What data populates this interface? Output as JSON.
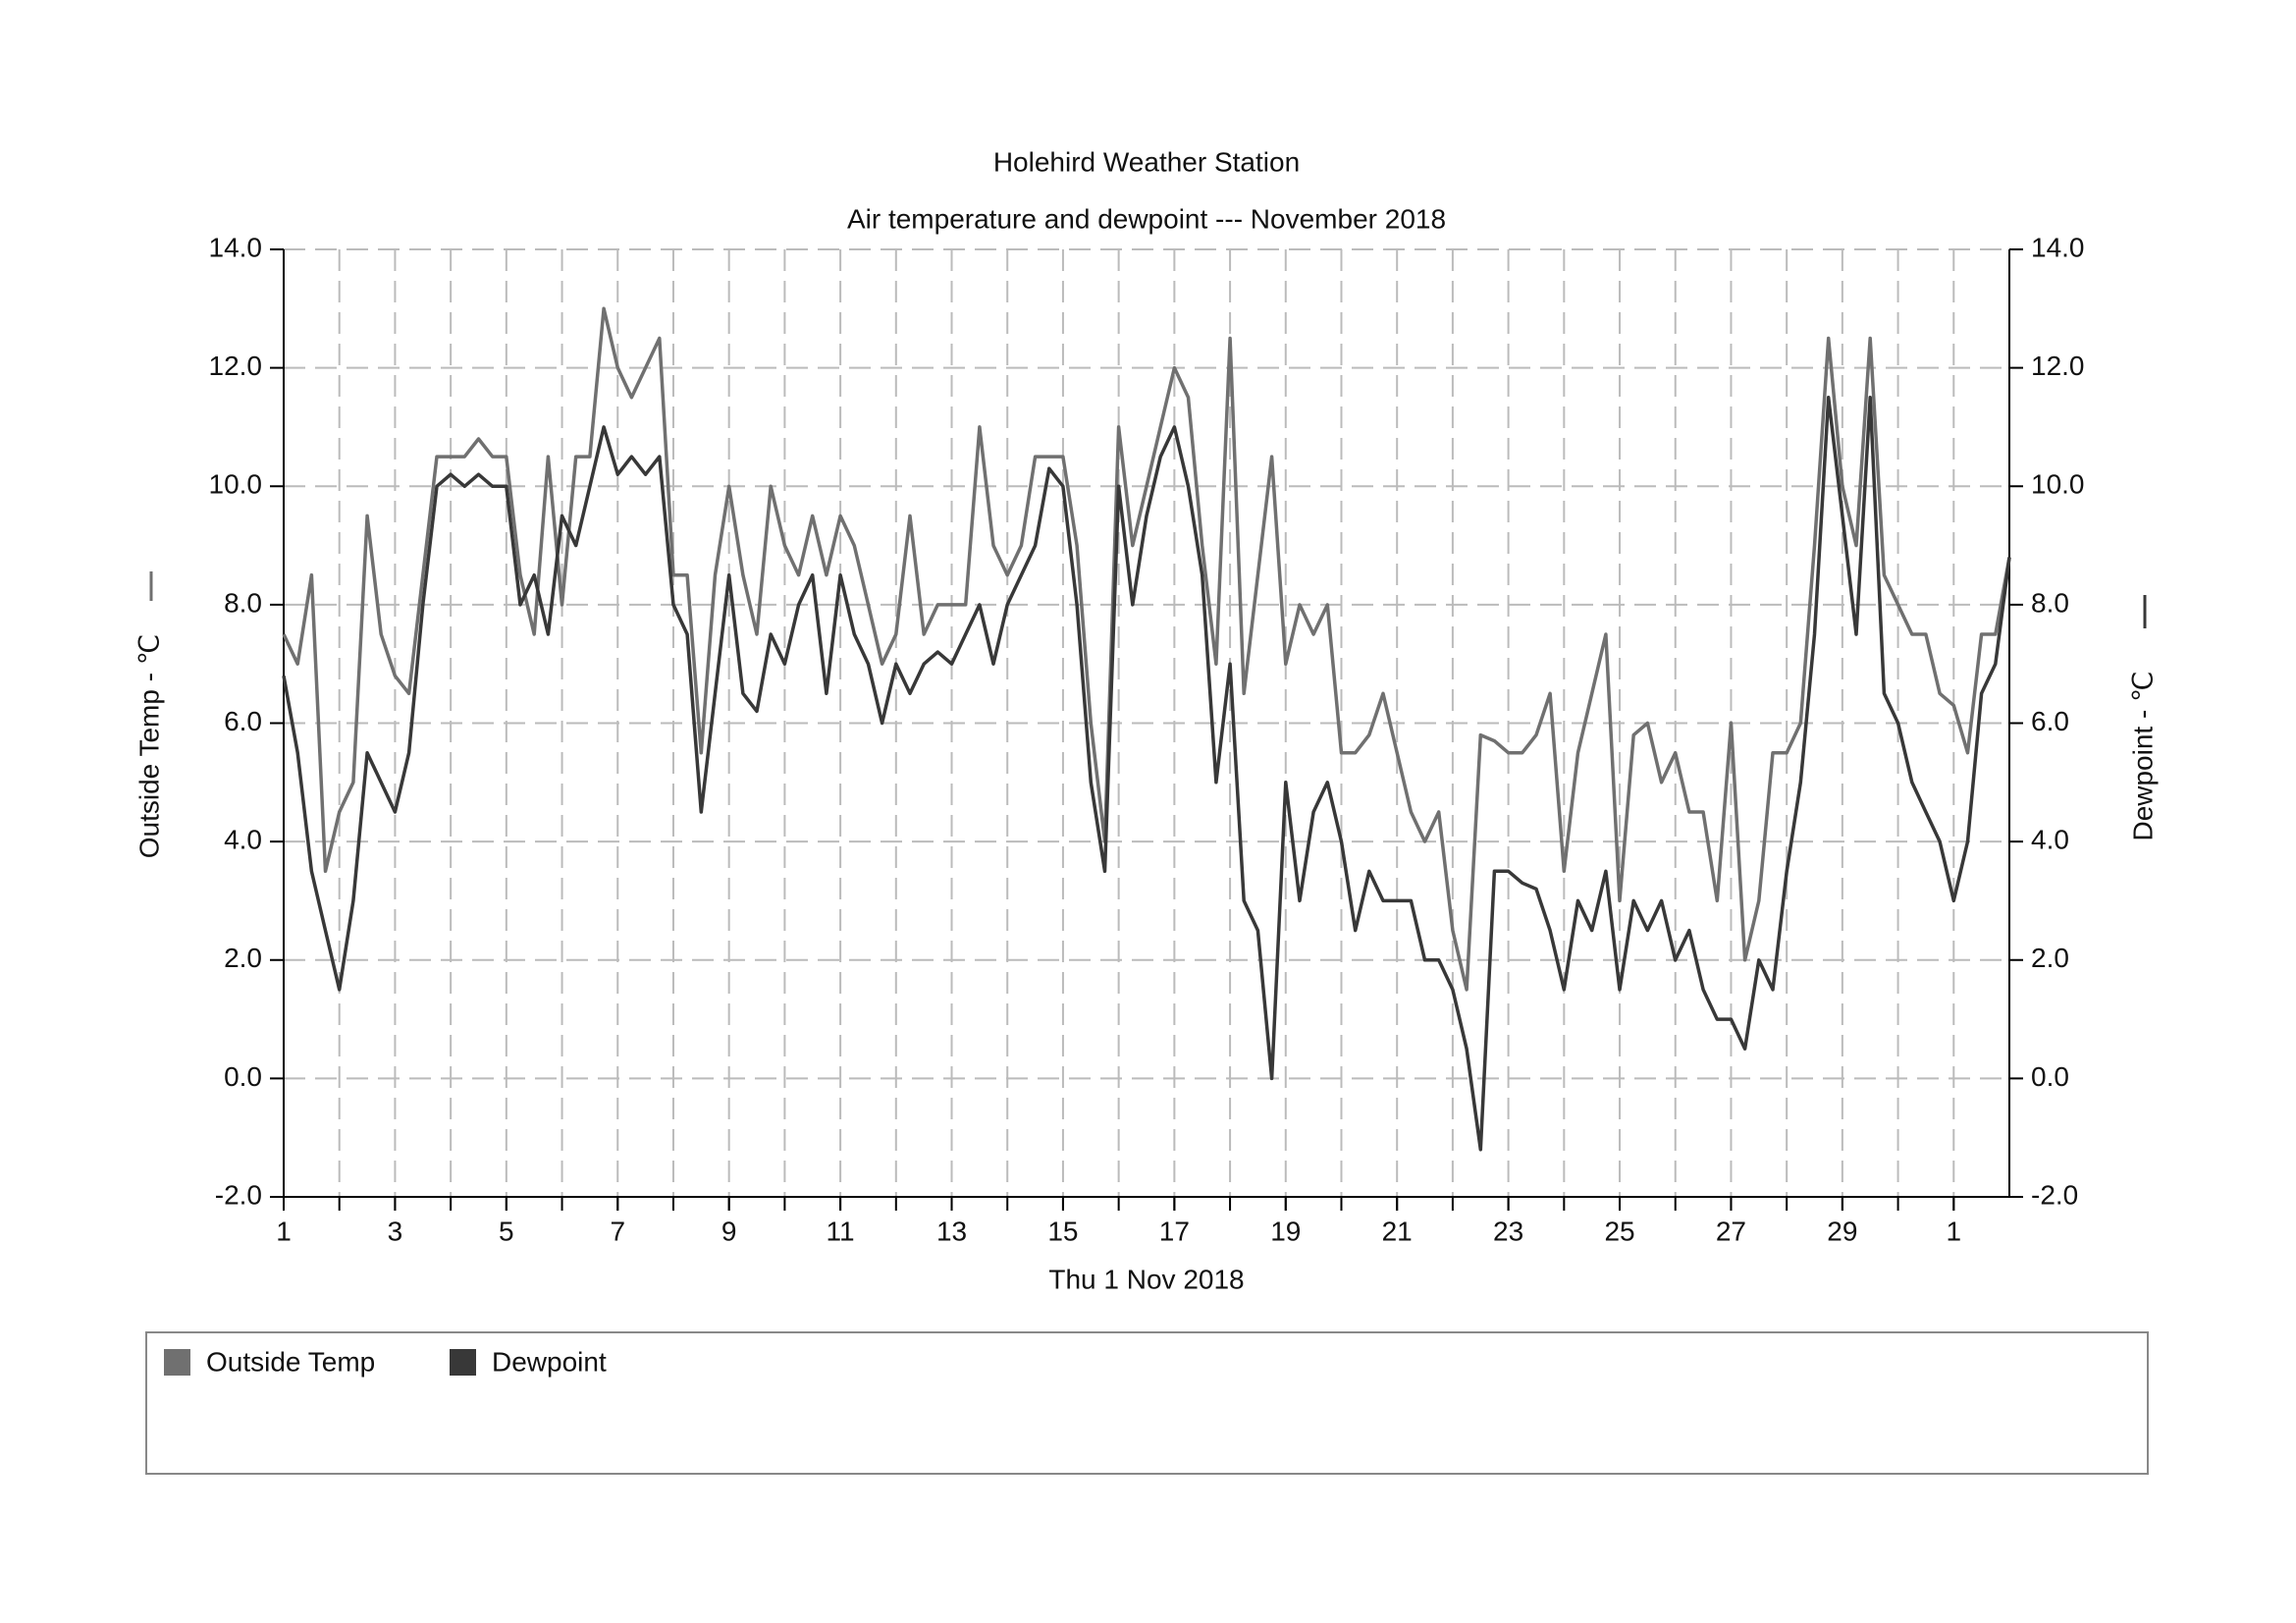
{
  "chart_data": {
    "type": "line",
    "title": "Holehird Weather Station",
    "subtitle": "Air temperature and dewpoint --- November 2018",
    "xlabel": "Thu 1 Nov 2018",
    "ylabel": "Outside Temp - ℃",
    "y2label": "Dewpoint - ℃",
    "xlim": [
      0,
      31
    ],
    "xticks": [
      {
        "value": 0,
        "label": "1"
      },
      {
        "value": 2,
        "label": "3"
      },
      {
        "value": 4,
        "label": "5"
      },
      {
        "value": 6,
        "label": "7"
      },
      {
        "value": 8,
        "label": "9"
      },
      {
        "value": 10,
        "label": "11"
      },
      {
        "value": 12,
        "label": "13"
      },
      {
        "value": 14,
        "label": "15"
      },
      {
        "value": 16,
        "label": "17"
      },
      {
        "value": 18,
        "label": "19"
      },
      {
        "value": 20,
        "label": "21"
      },
      {
        "value": 22,
        "label": "23"
      },
      {
        "value": 24,
        "label": "25"
      },
      {
        "value": 26,
        "label": "27"
      },
      {
        "value": 28,
        "label": "29"
      },
      {
        "value": 30,
        "label": "1"
      }
    ],
    "xgrid": [
      1,
      2,
      3,
      4,
      5,
      6,
      7,
      8,
      9,
      10,
      11,
      12,
      13,
      14,
      15,
      16,
      17,
      18,
      19,
      20,
      21,
      22,
      23,
      24,
      25,
      26,
      27,
      28,
      29,
      30
    ],
    "ylim": [
      -2,
      14
    ],
    "yticks": [
      {
        "value": -2,
        "label": "-2.0"
      },
      {
        "value": 0,
        "label": "0.0"
      },
      {
        "value": 2,
        "label": "2.0"
      },
      {
        "value": 4,
        "label": "4.0"
      },
      {
        "value": 6,
        "label": "6.0"
      },
      {
        "value": 8,
        "label": "8.0"
      },
      {
        "value": 10,
        "label": "10.0"
      },
      {
        "value": 12,
        "label": "12.0"
      },
      {
        "value": 14,
        "label": "14.0"
      }
    ],
    "y2lim": [
      -2,
      14
    ],
    "y2ticks": [
      {
        "value": -2,
        "label": "-2.0"
      },
      {
        "value": 0,
        "label": "0.0"
      },
      {
        "value": 2,
        "label": "2.0"
      },
      {
        "value": 4,
        "label": "4.0"
      },
      {
        "value": 6,
        "label": "6.0"
      },
      {
        "value": 8,
        "label": "8.0"
      },
      {
        "value": 10,
        "label": "10.0"
      },
      {
        "value": 12,
        "label": "12.0"
      },
      {
        "value": 14,
        "label": "14.0"
      }
    ],
    "grid": true,
    "x": [
      0,
      0.25,
      0.5,
      0.75,
      1,
      1.25,
      1.5,
      1.75,
      2,
      2.25,
      2.5,
      2.75,
      3,
      3.25,
      3.5,
      3.75,
      4,
      4.25,
      4.5,
      4.75,
      5,
      5.25,
      5.5,
      5.75,
      6,
      6.25,
      6.5,
      6.75,
      7,
      7.25,
      7.5,
      7.75,
      8,
      8.25,
      8.5,
      8.75,
      9,
      9.25,
      9.5,
      9.75,
      10,
      10.25,
      10.5,
      10.75,
      11,
      11.25,
      11.5,
      11.75,
      12,
      12.25,
      12.5,
      12.75,
      13,
      13.25,
      13.5,
      13.75,
      14,
      14.25,
      14.5,
      14.75,
      15,
      15.25,
      15.5,
      15.75,
      16,
      16.25,
      16.5,
      16.75,
      17,
      17.25,
      17.5,
      17.75,
      18,
      18.25,
      18.5,
      18.75,
      19,
      19.25,
      19.5,
      19.75,
      20,
      20.25,
      20.5,
      20.75,
      21,
      21.25,
      21.5,
      21.75,
      22,
      22.25,
      22.5,
      22.75,
      23,
      23.25,
      23.5,
      23.75,
      24,
      24.25,
      24.5,
      24.75,
      25,
      25.25,
      25.5,
      25.75,
      26,
      26.25,
      26.5,
      26.75,
      27,
      27.25,
      27.5,
      27.75,
      28,
      28.25,
      28.5,
      28.75,
      29,
      29.25,
      29.5,
      29.75,
      30,
      30.25,
      30.5,
      30.75,
      31
    ],
    "series": [
      {
        "name": "Outside Temp",
        "color": "#707070",
        "values": [
          7.5,
          7.0,
          8.5,
          3.5,
          4.5,
          5.0,
          9.5,
          7.5,
          6.8,
          6.5,
          8.5,
          10.5,
          10.5,
          10.5,
          10.8,
          10.5,
          10.5,
          8.5,
          7.5,
          10.5,
          8,
          10.5,
          10.5,
          13,
          12,
          11.5,
          12,
          12.5,
          8.5,
          8.5,
          5.5,
          8.5,
          10,
          8.5,
          7.5,
          10,
          9,
          8.5,
          9.5,
          8.5,
          9.5,
          9,
          8,
          7,
          7.5,
          9.5,
          7.5,
          8,
          8,
          8,
          11,
          9,
          8.5,
          9,
          10.5,
          10.5,
          10.5,
          9,
          6,
          4,
          11,
          9,
          10,
          11,
          12,
          11.5,
          9,
          7,
          12.5,
          6.5,
          8.5,
          10.5,
          7,
          8,
          7.5,
          8,
          5.5,
          5.5,
          5.8,
          6.5,
          5.5,
          4.5,
          4,
          4.5,
          2.5,
          1.5,
          5.8,
          5.7,
          5.5,
          5.5,
          5.8,
          6.5,
          3.5,
          5.5,
          6.5,
          7.5,
          3,
          5.8,
          6,
          5,
          5.5,
          4.5,
          4.5,
          3,
          6,
          2,
          3,
          5.5,
          5.5,
          6,
          9,
          12.5,
          10,
          9,
          12.5,
          8.5,
          8,
          7.5,
          7.5,
          6.5,
          6.3,
          5.5,
          7.5,
          7.5,
          8.8
        ]
      },
      {
        "name": "Dewpoint",
        "color": "#383838",
        "axis": "y2",
        "values": [
          6.8,
          5.5,
          3.5,
          2.5,
          1.5,
          3,
          5.5,
          5,
          4.5,
          5.5,
          8,
          10,
          10.2,
          10,
          10.2,
          10,
          10,
          8,
          8.5,
          7.5,
          9.5,
          9,
          10,
          11,
          10.2,
          10.5,
          10.2,
          10.5,
          8,
          7.5,
          4.5,
          6.5,
          8.5,
          6.5,
          6.2,
          7.5,
          7,
          8,
          8.5,
          6.5,
          8.5,
          7.5,
          7,
          6,
          7,
          6.5,
          7,
          7.2,
          7,
          7.5,
          8,
          7,
          8,
          8.5,
          9,
          10.3,
          10,
          8,
          5,
          3.5,
          10,
          8,
          9.5,
          10.5,
          11,
          10,
          8.5,
          5,
          7,
          3,
          2.5,
          0,
          5,
          3,
          4.5,
          5,
          4,
          2.5,
          3.5,
          3,
          3,
          3,
          2,
          2,
          1.5,
          0.5,
          -1.2,
          3.5,
          3.5,
          3.3,
          3.2,
          2.5,
          1.5,
          3,
          2.5,
          3.5,
          1.5,
          3,
          2.5,
          3,
          2,
          2.5,
          1.5,
          1,
          1,
          0.5,
          2,
          1.5,
          3.5,
          5,
          7.5,
          11.5,
          9.5,
          7.5,
          11.5,
          6.5,
          6,
          5,
          4.5,
          4,
          3,
          4,
          6.5,
          7,
          8.8
        ]
      }
    ]
  }
}
